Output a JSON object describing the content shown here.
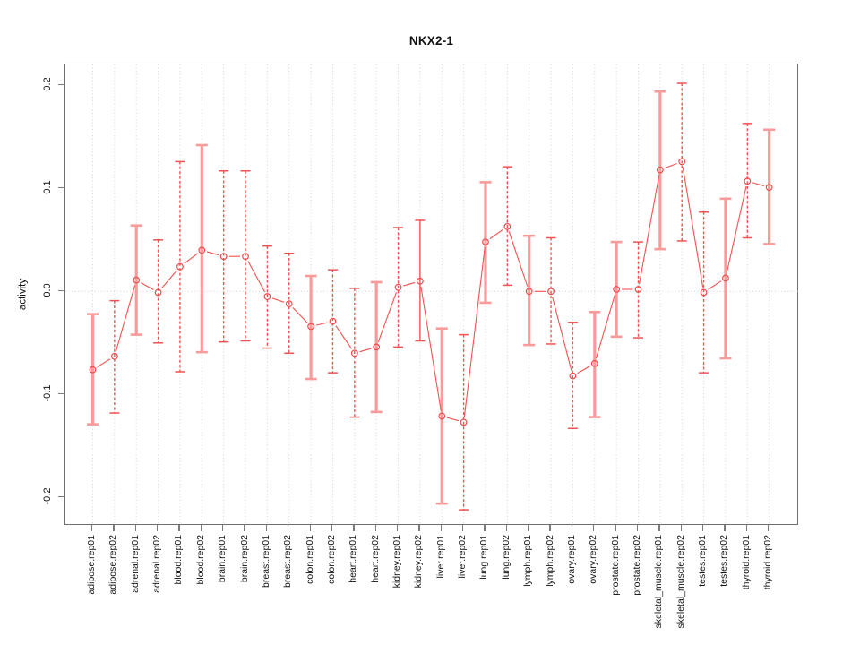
{
  "chart_data": {
    "type": "line",
    "title": "NKX2-1",
    "ylabel": "activity",
    "xlabel": "",
    "ylim": [
      -0.225,
      0.22
    ],
    "yticks": [
      0.2,
      0.1,
      0.0,
      -0.1,
      -0.2
    ],
    "ytick_labels": [
      "0.2",
      "0.1",
      "0.0",
      "-0.1",
      "-0.2"
    ],
    "grid": "vertical dotted gridline per category + dotted horizontal line at 0",
    "legend_position": "none",
    "marker": "open-circle",
    "categories": [
      "adipose.rep01",
      "adipose.rep02",
      "adrenal.rep01",
      "adrenal.rep02",
      "blood.rep01",
      "blood.rep02",
      "brain.rep01",
      "brain.rep02",
      "breast.rep01",
      "breast.rep02",
      "colon.rep01",
      "colon.rep02",
      "heart.rep01",
      "heart.rep02",
      "kidney.rep01",
      "kidney.rep02",
      "liver.rep01",
      "liver.rep02",
      "lung.rep01",
      "lung.rep02",
      "lymph.rep01",
      "lymph.rep02",
      "ovary.rep01",
      "ovary.rep02",
      "prostate.rep01",
      "prostate.rep02",
      "skeletal_muscle.rep01",
      "skeletal_muscle.rep02",
      "testes.rep01",
      "testes.rep02",
      "thyroid.rep01",
      "thyroid.rep02"
    ],
    "series": [
      {
        "name": "activity",
        "values": [
          -0.076,
          -0.063,
          0.011,
          -0.001,
          0.024,
          0.04,
          0.034,
          0.034,
          -0.005,
          -0.012,
          -0.034,
          -0.029,
          -0.06,
          -0.054,
          0.004,
          0.01,
          -0.121,
          -0.127,
          0.048,
          0.063,
          0.0,
          0.0,
          -0.082,
          -0.07,
          0.002,
          0.002,
          0.118,
          0.126,
          -0.001,
          0.013,
          0.107,
          0.101
        ],
        "err_hi": [
          -0.022,
          -0.009,
          0.064,
          0.05,
          0.126,
          0.142,
          0.117,
          0.117,
          0.044,
          0.037,
          0.015,
          0.021,
          0.003,
          0.009,
          0.062,
          0.069,
          -0.036,
          -0.042,
          0.106,
          0.121,
          0.054,
          0.052,
          -0.03,
          -0.02,
          0.048,
          0.048,
          0.194,
          0.202,
          0.077,
          0.09,
          0.163,
          0.157
        ],
        "err_lo": [
          -0.129,
          -0.118,
          -0.042,
          -0.05,
          -0.078,
          -0.059,
          -0.049,
          -0.048,
          -0.055,
          -0.06,
          -0.085,
          -0.079,
          -0.122,
          -0.117,
          -0.054,
          -0.048,
          -0.206,
          -0.212,
          -0.011,
          0.006,
          -0.052,
          -0.051,
          -0.133,
          -0.122,
          -0.044,
          -0.045,
          0.041,
          0.049,
          -0.079,
          -0.065,
          0.052,
          0.046
        ],
        "bar_styles": [
          "light",
          "dashed",
          "light",
          "dashed",
          "dashed",
          "light",
          "dashed",
          "dashed",
          "dashed",
          "dashed",
          "light",
          "dashed",
          "dashed",
          "light",
          "dashed",
          "solid",
          "light",
          "dashed",
          "light",
          "dashed",
          "light",
          "dashed",
          "dashed",
          "light",
          "light",
          "dashed",
          "light",
          "dashed",
          "dashed",
          "light",
          "dashed",
          "light"
        ]
      }
    ],
    "colors": {
      "point": "#ee4b4b",
      "line": "#ef5350",
      "bar_light": "#fa9b9b",
      "bar_dark": "#f05353",
      "grid": "#d4d4d4",
      "zero_line": "#cfcfcf",
      "frame": "#6f6f6f",
      "tick": "#7d7d7d",
      "text": "#111111"
    }
  }
}
